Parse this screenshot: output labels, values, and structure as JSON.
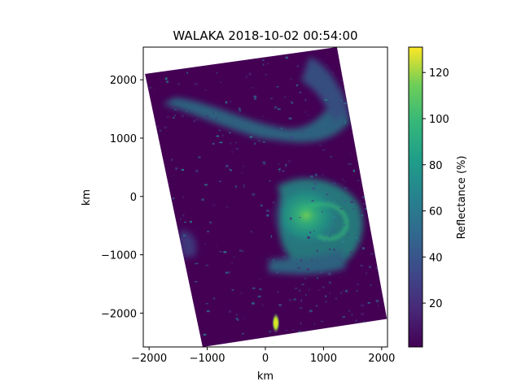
{
  "chart_data": {
    "type": "heatmap",
    "title": "WALAKA 2018-10-02 00:54:00",
    "xlabel": "km",
    "ylabel": "km",
    "xlim": [
      -2100,
      2100
    ],
    "ylim": [
      -2580,
      2560
    ],
    "x_ticks": [
      -2000,
      -1000,
      0,
      1000,
      2000
    ],
    "x_tick_labels": [
      "−2000",
      "−1000",
      "0",
      "1000",
      "2000"
    ],
    "y_ticks": [
      2000,
      1000,
      0,
      -1000,
      -2000
    ],
    "y_tick_labels": [
      "2000",
      "1000",
      "0",
      "−1000",
      "−2000"
    ],
    "colorbar": {
      "label": "Reflectance (%)",
      "range": [
        1,
        131
      ],
      "ticks": [
        20,
        40,
        60,
        80,
        100,
        120
      ],
      "tick_labels": [
        "20",
        "40",
        "60",
        "80",
        "100",
        "120"
      ],
      "colormap": "viridis"
    },
    "swath_corners_km": [
      [
        -2070,
        2100
      ],
      [
        1230,
        2560
      ],
      [
        2090,
        -2100
      ],
      [
        -1080,
        -2580
      ]
    ],
    "features": [
      {
        "name": "cyclone-eye",
        "x": 700,
        "y": -320,
        "value": 80
      },
      {
        "name": "bright-spot",
        "x": 180,
        "y": -2170,
        "value": 128
      }
    ]
  },
  "colors": {
    "background": "#440154",
    "low": "#3b528b",
    "mid": "#21918c",
    "high": "#5ec962",
    "max": "#fde725"
  }
}
